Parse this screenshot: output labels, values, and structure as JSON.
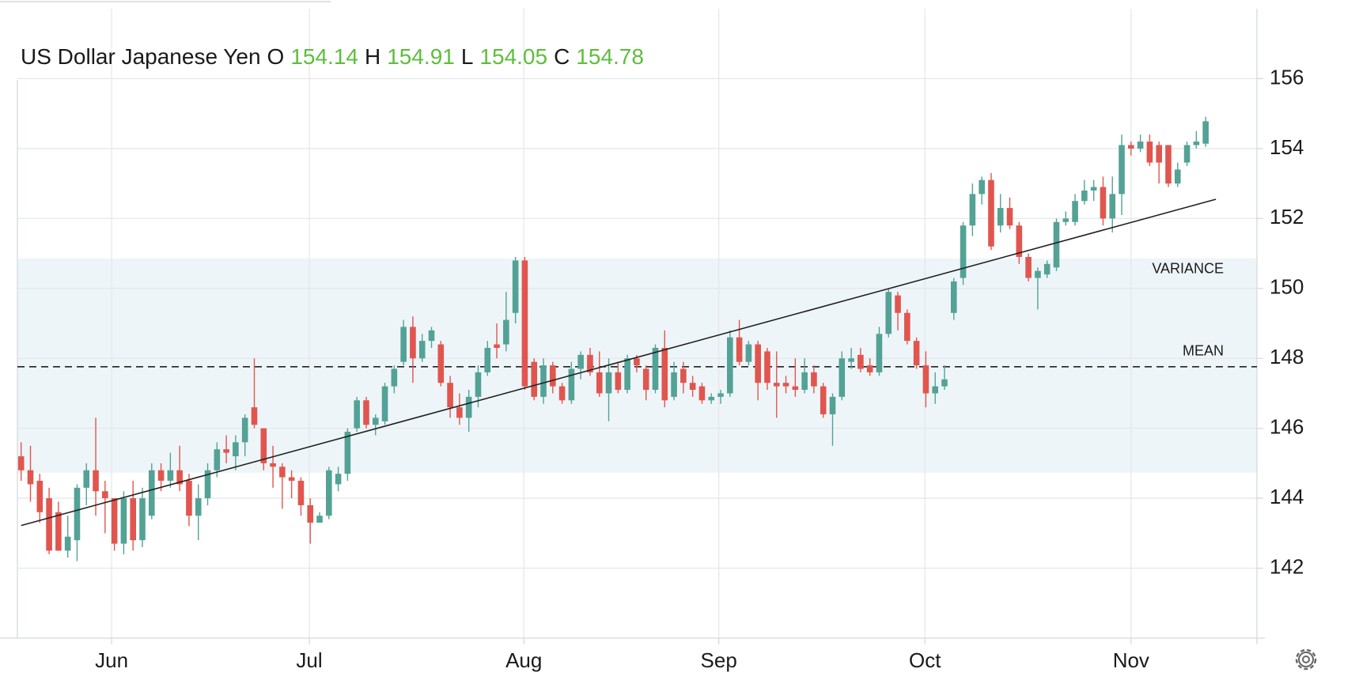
{
  "chart_data": {
    "type": "candlestick",
    "title": "US Dollar Japanese Yen",
    "legend_items": [
      {
        "label": "O",
        "value": 154.14
      },
      {
        "label": "H",
        "value": 154.91
      },
      {
        "label": "L",
        "value": 154.05
      },
      {
        "label": "C",
        "value": 154.78
      }
    ],
    "up_color": "#53a295",
    "down_color": "#e0564e",
    "grid": true,
    "xlim": [
      -0.4,
      132.5
    ],
    "xticks": [
      {
        "value": 9.7,
        "label": "Jun"
      },
      {
        "value": 30.9,
        "label": "Jul"
      },
      {
        "value": 53.9,
        "label": "Aug"
      },
      {
        "value": 74.8,
        "label": "Sep"
      },
      {
        "value": 96.9,
        "label": "Oct"
      },
      {
        "value": 119,
        "label": "Nov"
      }
    ],
    "ylim": [
      140,
      158
    ],
    "yticks": [
      142,
      144,
      146,
      148,
      150,
      152,
      154,
      156
    ],
    "variance": {
      "label": "VARIANCE",
      "range": [
        144.73,
        150.86
      ],
      "color": "#eef5f9"
    },
    "mean": {
      "label": "MEAN",
      "value": 147.76
    },
    "trendline": {
      "x": [
        0,
        128.1
      ],
      "values": [
        143.22,
        152.55
      ]
    },
    "open": [
      145.2,
      144.8,
      144.5,
      144.0,
      143.6,
      142.5,
      142.8,
      144.3,
      144.8,
      144.2,
      144.0,
      142.7,
      144.0,
      142.8,
      143.5,
      144.8,
      144.5,
      144.8,
      144.5,
      143.5,
      144.0,
      144.8,
      145.4,
      145.2,
      145.6,
      146.6,
      146.0,
      145.0,
      144.9,
      144.6,
      144.5,
      143.8,
      143.3,
      143.5,
      144.4,
      144.7,
      146.0,
      146.8,
      146.1,
      146.2,
      147.2,
      147.9,
      148.9,
      148.0,
      148.5,
      148.4,
      147.3,
      146.6,
      146.3,
      146.9,
      147.6,
      148.4,
      148.4,
      149.3,
      150.8,
      147.9,
      146.9,
      147.8,
      147.2,
      146.8,
      147.7,
      148.1,
      147.6,
      147.0,
      147.6,
      147.1,
      148.0,
      147.7,
      147.1,
      148.3,
      146.9,
      147.7,
      147.3,
      147.2,
      146.8,
      146.9,
      147.0,
      148.6,
      147.9,
      148.4,
      148.2,
      147.3,
      147.3,
      147.2,
      147.1,
      147.6,
      147.2,
      146.4,
      146.9,
      147.9,
      148.1,
      147.8,
      147.6,
      148.7,
      149.8,
      149.3,
      148.5,
      147.8,
      147.0,
      147.2,
      149.3,
      150.3,
      151.8,
      152.7,
      153.1,
      151.8,
      152.3,
      151.8,
      150.9,
      150.3,
      150.4,
      150.6,
      151.9,
      151.9,
      152.5,
      152.8,
      152.9,
      152.0,
      152.7,
      154.1,
      154.0,
      154.2,
      154.1,
      154.1,
      153.0,
      153.6,
      154.1,
      154.14
    ],
    "high": [
      145.6,
      145.5,
      144.7,
      144.3,
      143.9,
      143.5,
      144.4,
      145.0,
      146.3,
      144.5,
      144.0,
      144.2,
      144.5,
      144.3,
      145.0,
      145.0,
      145.3,
      145.5,
      144.7,
      144.4,
      145.0,
      145.6,
      145.8,
      145.8,
      146.4,
      148.0,
      146.0,
      145.5,
      145.0,
      144.8,
      144.6,
      144.0,
      143.6,
      144.9,
      144.9,
      146.0,
      146.9,
      146.9,
      146.4,
      147.3,
      147.8,
      149.1,
      149.2,
      148.7,
      148.9,
      148.5,
      147.5,
      147.0,
      147.1,
      147.8,
      148.5,
      149.0,
      149.9,
      150.9,
      150.9,
      148.0,
      148.0,
      147.9,
      147.3,
      147.9,
      148.2,
      148.3,
      148.2,
      148.0,
      147.9,
      148.1,
      148.1,
      147.8,
      148.4,
      148.8,
      147.9,
      147.9,
      147.5,
      147.3,
      147.0,
      147.1,
      148.8,
      149.1,
      148.5,
      148.5,
      148.3,
      148.2,
      147.5,
      148.0,
      148.0,
      147.8,
      147.3,
      147.0,
      148.2,
      148.3,
      148.3,
      148.0,
      148.9,
      150.0,
      149.9,
      149.4,
      148.6,
      148.2,
      147.6,
      147.8,
      150.3,
      151.9,
      153.0,
      153.2,
      153.3,
      152.7,
      152.6,
      151.9,
      151.0,
      150.6,
      150.8,
      152.0,
      152.2,
      152.7,
      153.1,
      153.1,
      153.2,
      153.2,
      154.4,
      154.2,
      154.4,
      154.4,
      154.2,
      154.1,
      153.6,
      154.2,
      154.5,
      154.91
    ],
    "low": [
      144.5,
      143.9,
      143.3,
      142.4,
      142.5,
      142.3,
      142.2,
      143.8,
      143.5,
      143.0,
      142.5,
      142.4,
      142.5,
      142.6,
      143.4,
      144.2,
      144.3,
      144.2,
      143.2,
      142.8,
      143.8,
      144.6,
      145.0,
      144.8,
      145.2,
      146.0,
      144.8,
      144.3,
      143.7,
      144.0,
      143.5,
      142.7,
      143.3,
      143.4,
      144.2,
      144.5,
      145.9,
      146.0,
      145.8,
      146.1,
      147.0,
      147.8,
      147.3,
      147.9,
      148.3,
      147.2,
      146.3,
      146.1,
      145.9,
      146.6,
      147.5,
      148.0,
      148.2,
      149.0,
      147.1,
      146.8,
      146.7,
      147.0,
      146.7,
      146.7,
      147.4,
      147.5,
      146.9,
      146.2,
      147.0,
      147.0,
      147.6,
      146.8,
      147.0,
      146.6,
      146.8,
      147.0,
      146.9,
      146.7,
      146.7,
      146.7,
      146.9,
      147.8,
      147.8,
      146.8,
      147.1,
      146.3,
      147.0,
      146.9,
      147.0,
      147.0,
      146.3,
      145.5,
      146.8,
      147.7,
      147.6,
      147.5,
      147.5,
      148.6,
      148.8,
      148.4,
      147.7,
      146.6,
      146.7,
      147.1,
      149.1,
      150.1,
      151.5,
      152.4,
      151.1,
      151.6,
      151.7,
      150.7,
      150.2,
      149.4,
      150.3,
      150.5,
      151.8,
      151.8,
      152.4,
      152.5,
      151.8,
      151.6,
      152.1,
      153.8,
      153.9,
      153.5,
      153.0,
      152.9,
      152.9,
      153.5,
      154.0,
      154.05
    ],
    "close": [
      144.8,
      144.4,
      143.6,
      142.5,
      142.5,
      142.9,
      144.3,
      144.8,
      144.2,
      144.0,
      142.7,
      144.0,
      142.8,
      144.0,
      144.8,
      144.5,
      144.8,
      144.4,
      143.5,
      144.0,
      144.8,
      145.4,
      145.3,
      145.6,
      146.3,
      146.1,
      145.0,
      144.9,
      144.6,
      144.5,
      143.8,
      143.3,
      143.5,
      144.8,
      144.7,
      145.9,
      146.8,
      146.1,
      146.3,
      147.2,
      147.7,
      148.9,
      148.0,
      148.5,
      148.8,
      147.3,
      146.6,
      146.3,
      146.9,
      147.6,
      148.3,
      148.3,
      149.1,
      150.8,
      147.2,
      146.9,
      147.8,
      147.2,
      146.8,
      147.7,
      148.1,
      147.6,
      147.0,
      147.6,
      147.1,
      148.0,
      147.8,
      147.1,
      148.3,
      146.8,
      147.6,
      147.3,
      147.1,
      146.8,
      146.9,
      147.0,
      148.6,
      147.9,
      148.4,
      147.3,
      147.3,
      147.2,
      147.2,
      147.1,
      147.6,
      147.2,
      146.4,
      146.9,
      148.0,
      148.0,
      147.7,
      147.6,
      148.7,
      149.9,
      149.3,
      148.5,
      147.8,
      147.0,
      147.2,
      147.4,
      150.2,
      151.8,
      152.7,
      153.1,
      151.2,
      152.3,
      151.8,
      150.9,
      150.3,
      150.5,
      150.7,
      151.9,
      152.0,
      152.5,
      152.8,
      152.9,
      152.0,
      152.7,
      154.1,
      154.0,
      154.2,
      153.6,
      153.6,
      153.0,
      153.4,
      154.1,
      154.2,
      154.78
    ]
  }
}
